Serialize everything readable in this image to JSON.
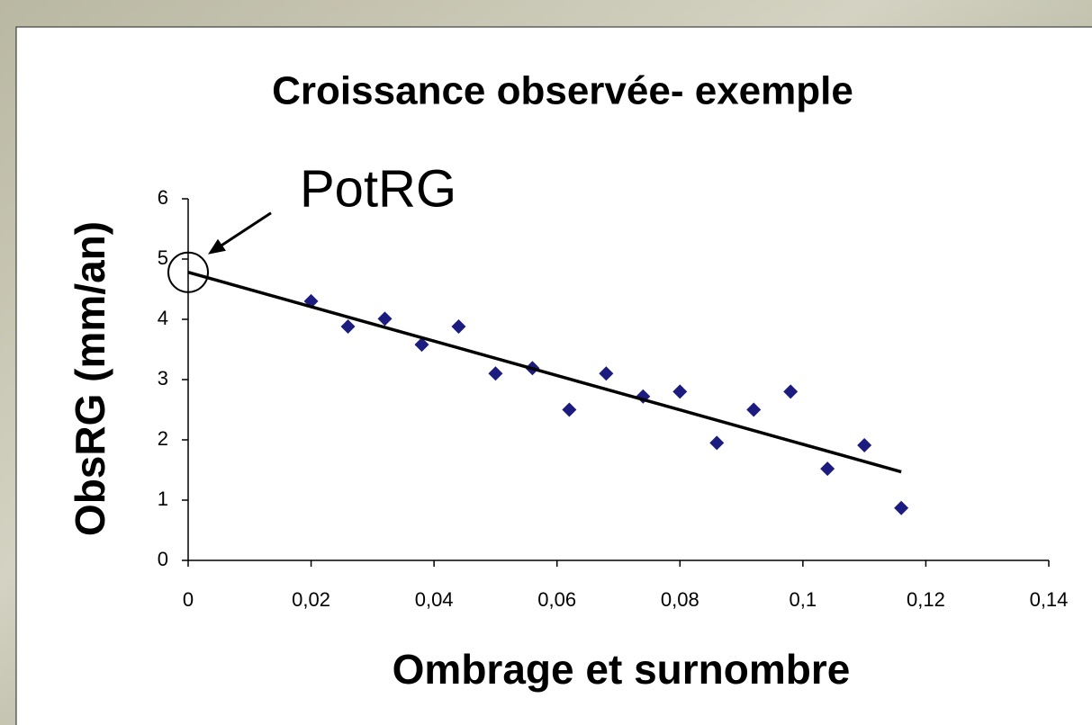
{
  "chart_data": {
    "type": "scatter",
    "title": "Croissance observée- exemple",
    "x_label": "Ombrage et surnombre",
    "y_label": "ObsRG (mm/an)",
    "annotation": "PotRG",
    "series": [
      {
        "kind": "points",
        "color": "#1c1c80",
        "x": [
          0.02,
          0.026,
          0.032,
          0.038,
          0.044,
          0.05,
          0.056,
          0.062,
          0.068,
          0.074,
          0.08,
          0.086,
          0.092,
          0.098,
          0.104,
          0.11,
          0.116
        ],
        "values": [
          4.3,
          3.88,
          4.01,
          3.58,
          3.88,
          3.1,
          3.19,
          2.5,
          3.1,
          2.72,
          2.8,
          1.95,
          2.5,
          2.8,
          1.52,
          1.91,
          0.87
        ]
      },
      {
        "kind": "trend",
        "color": "#000000",
        "x": [
          0,
          0.116
        ],
        "values": [
          4.78,
          1.47
        ]
      }
    ],
    "xlim": [
      0,
      0.14
    ],
    "ylim": [
      0,
      6
    ],
    "xticks": [
      0,
      {
        "value": 0.02,
        "label": "0,02"
      },
      {
        "value": 0.04,
        "label": "0,04"
      },
      {
        "value": 0.06,
        "label": "0,06"
      },
      {
        "value": 0.08,
        "label": "0,08"
      },
      {
        "value": 0.1,
        "label": "0,1"
      },
      {
        "value": 0.12,
        "label": "0,12"
      },
      {
        "value": 0.14,
        "label": "0,14"
      }
    ],
    "yticks": [
      0,
      1,
      2,
      3,
      4,
      5,
      6
    ],
    "grid": false
  }
}
